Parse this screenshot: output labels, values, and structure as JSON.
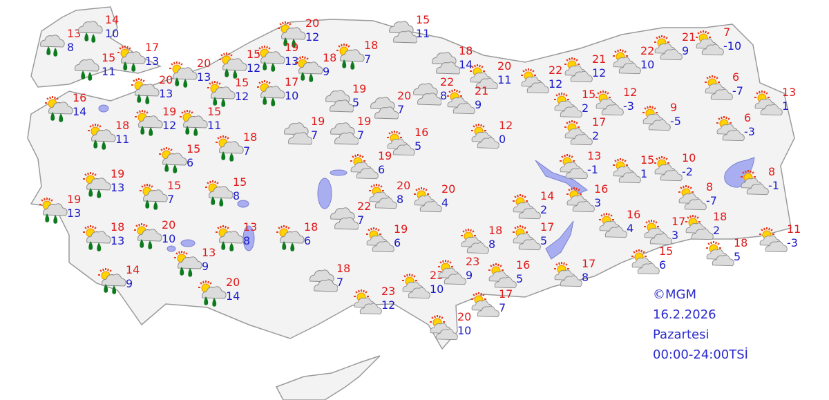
{
  "colors": {
    "max_temp": "#e01818",
    "min_temp": "#1a1ac8",
    "land": "#f3f3f3",
    "border": "#9a9a9a",
    "water": "#a8aef0",
    "info_text": "#2a2acc"
  },
  "info": {
    "copyright": "©MGM",
    "date": "16.2.2026",
    "day": "Pazartesi",
    "period": "00:00-24:00TSİ"
  },
  "stations": [
    {
      "icon": "rain",
      "max": "13",
      "min": "8"
    },
    {
      "icon": "rain",
      "max": "14",
      "min": "10"
    },
    {
      "icon": "rain",
      "max": "15",
      "min": "11"
    },
    {
      "icon": "sun-cloud-rain",
      "max": "17",
      "min": "13"
    },
    {
      "icon": "sun-cloud-rain",
      "max": "20",
      "min": "12"
    },
    {
      "icon": "sun-cloud-rain",
      "max": "15",
      "min": "12"
    },
    {
      "icon": "sun-cloud-rain",
      "max": "19",
      "min": "13"
    },
    {
      "icon": "sun-cloud-rain",
      "max": "18",
      "min": "9"
    },
    {
      "icon": "sun-cloud-rain",
      "max": "18",
      "min": "7"
    },
    {
      "icon": "sun-cloud-rain",
      "max": "20",
      "min": "13"
    },
    {
      "icon": "sun-cloud-rain",
      "max": "20",
      "min": "13"
    },
    {
      "icon": "sun-cloud-rain",
      "max": "15",
      "min": "12"
    },
    {
      "icon": "sun-cloud-rain",
      "max": "17",
      "min": "10"
    },
    {
      "icon": "sun-cloud-rain",
      "max": "16",
      "min": "14"
    },
    {
      "icon": "sun-cloud-rain",
      "max": "19",
      "min": "12"
    },
    {
      "icon": "sun-cloud-rain",
      "max": "15",
      "min": "11"
    },
    {
      "icon": "sun-cloud-rain",
      "max": "18",
      "min": "11"
    },
    {
      "icon": "sun-cloud-rain",
      "max": "18",
      "min": "7"
    },
    {
      "icon": "sun-cloud-rain",
      "max": "15",
      "min": "6"
    },
    {
      "icon": "sun-cloud-rain",
      "max": "19",
      "min": "13"
    },
    {
      "icon": "sun-cloud-rain",
      "max": "15",
      "min": "7"
    },
    {
      "icon": "sun-cloud-rain",
      "max": "15",
      "min": "8"
    },
    {
      "icon": "sun-cloud-rain",
      "max": "19",
      "min": "13"
    },
    {
      "icon": "sun-cloud-rain",
      "max": "18",
      "min": "13"
    },
    {
      "icon": "sun-cloud-rain",
      "max": "20",
      "min": "10"
    },
    {
      "icon": "sun-cloud-rain",
      "max": "13",
      "min": "9"
    },
    {
      "icon": "sun-cloud-rain",
      "max": "13",
      "min": "8"
    },
    {
      "icon": "sun-cloud-rain",
      "max": "18",
      "min": "6"
    },
    {
      "icon": "sun-cloud-rain",
      "max": "14",
      "min": "9"
    },
    {
      "icon": "sun-cloud-rain",
      "max": "20",
      "min": "14"
    },
    {
      "icon": "cloudy",
      "max": "15",
      "min": "11"
    },
    {
      "icon": "cloudy",
      "max": "18",
      "min": "14"
    },
    {
      "icon": "cloudy",
      "max": "19",
      "min": "5"
    },
    {
      "icon": "cloudy",
      "max": "20",
      "min": "7"
    },
    {
      "icon": "cloudy",
      "max": "19",
      "min": "7"
    },
    {
      "icon": "cloudy",
      "max": "19",
      "min": "7"
    },
    {
      "icon": "cloudy",
      "max": "22",
      "min": "8"
    },
    {
      "icon": "cloudy",
      "max": "22",
      "min": "7"
    },
    {
      "icon": "cloudy",
      "max": "18",
      "min": "7"
    },
    {
      "icon": "partly-cloudy",
      "max": "16",
      "min": "5"
    },
    {
      "icon": "partly-cloudy",
      "max": "19",
      "min": "6"
    },
    {
      "icon": "partly-cloudy",
      "max": "20",
      "min": "8"
    },
    {
      "icon": "partly-cloudy",
      "max": "20",
      "min": "4"
    },
    {
      "icon": "partly-cloudy",
      "max": "19",
      "min": "6"
    },
    {
      "icon": "partly-cloudy",
      "max": "23",
      "min": "12"
    },
    {
      "icon": "partly-cloudy",
      "max": "23",
      "min": "10"
    },
    {
      "icon": "partly-cloudy",
      "max": "20",
      "min": "10"
    },
    {
      "icon": "partly-cloudy",
      "max": "17",
      "min": "7"
    },
    {
      "icon": "partly-cloudy",
      "max": "23",
      "min": "9"
    },
    {
      "icon": "partly-cloudy",
      "max": "16",
      "min": "5"
    },
    {
      "icon": "partly-cloudy",
      "max": "18",
      "min": "8"
    },
    {
      "icon": "partly-cloudy",
      "max": "17",
      "min": "5"
    },
    {
      "icon": "partly-cloudy",
      "max": "17",
      "min": "8"
    },
    {
      "icon": "partly-cloudy",
      "max": "14",
      "min": "2"
    },
    {
      "icon": "partly-cloudy",
      "max": "16",
      "min": "3"
    },
    {
      "icon": "partly-cloudy",
      "max": "20",
      "min": "11"
    },
    {
      "icon": "partly-cloudy",
      "max": "21",
      "min": "9"
    },
    {
      "icon": "partly-cloudy",
      "max": "22",
      "min": "12"
    },
    {
      "icon": "partly-cloudy",
      "max": "12",
      "min": "0"
    },
    {
      "icon": "partly-cloudy",
      "max": "21",
      "min": "12"
    },
    {
      "icon": "partly-cloudy",
      "max": "22",
      "min": "10"
    },
    {
      "icon": "partly-cloudy",
      "max": "21",
      "min": "9"
    },
    {
      "icon": "partly-cloudy",
      "max": "7",
      "min": "-10"
    },
    {
      "icon": "partly-cloudy",
      "max": "15",
      "min": "2"
    },
    {
      "icon": "partly-cloudy",
      "max": "12",
      "min": "-3"
    },
    {
      "icon": "partly-cloudy",
      "max": "9",
      "min": "-5"
    },
    {
      "icon": "partly-cloudy",
      "max": "17",
      "min": "2"
    },
    {
      "icon": "partly-cloudy",
      "max": "6",
      "min": "-7"
    },
    {
      "icon": "partly-cloudy",
      "max": "13",
      "min": "1"
    },
    {
      "icon": "partly-cloudy",
      "max": "6",
      "min": "-3"
    },
    {
      "icon": "partly-cloudy",
      "max": "13",
      "min": "-1"
    },
    {
      "icon": "partly-cloudy",
      "max": "15",
      "min": "1"
    },
    {
      "icon": "partly-cloudy",
      "max": "10",
      "min": "-2"
    },
    {
      "icon": "partly-cloudy",
      "max": "8",
      "min": "-1"
    },
    {
      "icon": "partly-cloudy",
      "max": "8",
      "min": "-7"
    },
    {
      "icon": "partly-cloudy",
      "max": "16",
      "min": "4"
    },
    {
      "icon": "partly-cloudy",
      "max": "17",
      "min": "3"
    },
    {
      "icon": "partly-cloudy",
      "max": "18",
      "min": "2"
    },
    {
      "icon": "partly-cloudy",
      "max": "11",
      "min": "-3"
    },
    {
      "icon": "partly-cloudy",
      "max": "18",
      "min": "5"
    },
    {
      "icon": "partly-cloudy",
      "max": "15",
      "min": "6"
    }
  ]
}
